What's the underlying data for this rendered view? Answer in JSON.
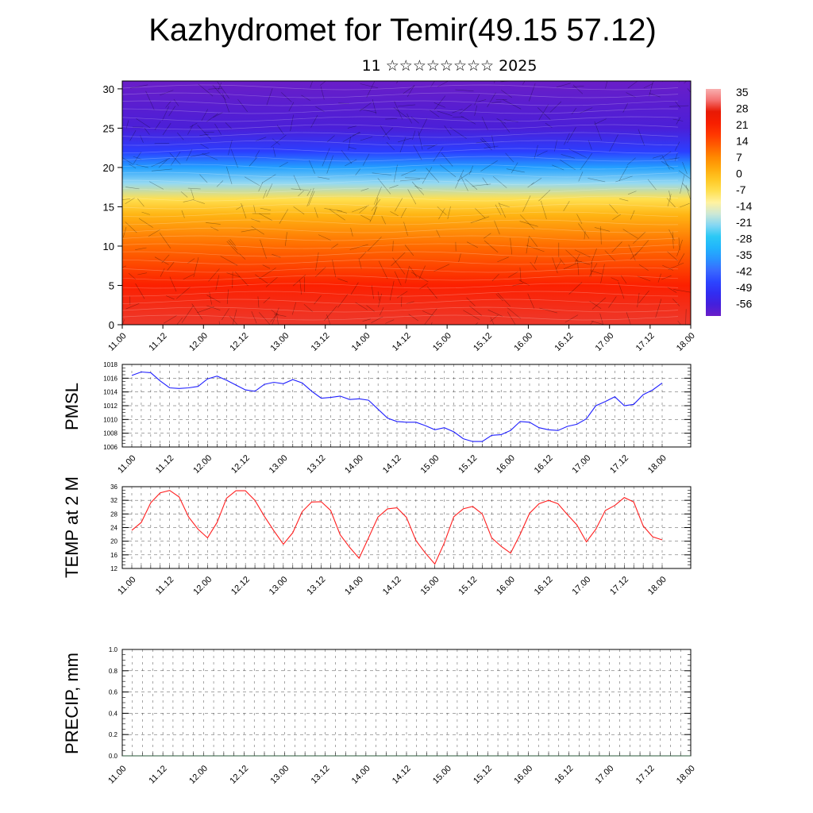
{
  "header": {
    "title": "Kazhydromet for Temir(49.15 57.12)",
    "subtitle": "11 ☆☆☆☆☆☆☆☆ 2025"
  },
  "x_labels": [
    "11.00",
    "11.12",
    "12.00",
    "12.12",
    "13.00",
    "13.12",
    "14.00",
    "14.12",
    "15.00",
    "15.12",
    "16.00",
    "16.12",
    "17.00",
    "17.12",
    "18.00"
  ],
  "chart_data": [
    {
      "type": "heatmap",
      "ylim": [
        0,
        31
      ],
      "y_ticks": [
        "0",
        "5",
        "10",
        "15",
        "20",
        "25",
        "30"
      ],
      "colorbar_labels": [
        "35",
        "28",
        "21",
        "14",
        "7",
        "0",
        "-7",
        "-14",
        "-21",
        "-28",
        "-35",
        "-42",
        "-49",
        "-56"
      ],
      "colorbar_range": [
        -60,
        38
      ],
      "profile": [
        {
          "y": 0,
          "v": 30
        },
        {
          "y": 5,
          "v": 22
        },
        {
          "y": 10,
          "v": 12
        },
        {
          "y": 14,
          "v": 2
        },
        {
          "y": 16,
          "v": -6
        },
        {
          "y": 18,
          "v": -20
        },
        {
          "y": 20,
          "v": -34
        },
        {
          "y": 22,
          "v": -46
        },
        {
          "y": 25,
          "v": -56
        },
        {
          "y": 28,
          "v": -58
        },
        {
          "y": 31,
          "v": -60
        }
      ],
      "grid": true
    },
    {
      "type": "line",
      "ylabel": "PMSL",
      "ylim": [
        1006,
        1018
      ],
      "y_ticks": [
        "1006",
        "1008",
        "1010",
        "1012",
        "1014",
        "1016",
        "1018"
      ],
      "color": "#1f1fff",
      "values": [
        1016.4,
        1016.9,
        1016.8,
        1015.6,
        1014.6,
        1014.5,
        1014.6,
        1014.8,
        1015.9,
        1016.3,
        1015.7,
        1015.0,
        1014.3,
        1014.1,
        1015.1,
        1015.4,
        1015.2,
        1015.8,
        1015.3,
        1014.1,
        1013.1,
        1013.2,
        1013.4,
        1012.9,
        1013.0,
        1012.8,
        1011.5,
        1010.2,
        1009.7,
        1009.6,
        1009.6,
        1009.1,
        1008.5,
        1008.8,
        1008.2,
        1007.2,
        1006.8,
        1006.8,
        1007.7,
        1007.8,
        1008.4,
        1009.7,
        1009.6,
        1008.8,
        1008.5,
        1008.4,
        1009.0,
        1009.3,
        1010.1,
        1012.0,
        1012.6,
        1013.3,
        1012.0,
        1012.2,
        1013.6,
        1014.3,
        1015.3
      ],
      "grid": true
    },
    {
      "type": "line",
      "ylabel": "TEMP at 2 M",
      "ylim": [
        12,
        36
      ],
      "y_ticks": [
        "12",
        "16",
        "20",
        "24",
        "28",
        "32",
        "36"
      ],
      "color": "#ff1f1f",
      "values": [
        23.2,
        25.5,
        31.3,
        34.2,
        34.9,
        33.0,
        27.1,
        23.5,
        21.0,
        25.5,
        32.6,
        34.8,
        34.8,
        32.0,
        27.3,
        23.1,
        19.1,
        22.5,
        28.7,
        31.5,
        31.6,
        29.0,
        21.9,
        18.2,
        15.0,
        21.0,
        27.1,
        29.5,
        29.8,
        27.0,
        20.2,
        16.5,
        13.3,
        19.5,
        27.2,
        29.5,
        30.2,
        28.0,
        21.0,
        18.5,
        16.5,
        22.0,
        28.2,
        31.0,
        32.0,
        31.0,
        27.8,
        24.8,
        19.8,
        23.5,
        29.0,
        30.5,
        32.8,
        31.5,
        24.5,
        21.3,
        20.4
      ],
      "grid": true
    },
    {
      "type": "line",
      "ylabel": "PRECIP, mm",
      "ylim": [
        0,
        1
      ],
      "y_ticks": [
        "0.0",
        "0.2",
        "0.4",
        "0.6",
        "0.8",
        "1.0"
      ],
      "color": "#2a5a3a",
      "values": [
        0,
        0,
        0,
        0,
        0,
        0,
        0,
        0,
        0,
        0,
        0,
        0,
        0,
        0,
        0,
        0,
        0,
        0,
        0,
        0,
        0,
        0,
        0,
        0,
        0,
        0,
        0,
        0,
        0,
        0,
        0,
        0,
        0,
        0,
        0,
        0,
        0,
        0,
        0,
        0,
        0,
        0,
        0,
        0,
        0,
        0,
        0,
        0,
        0,
        0,
        0,
        0,
        0,
        0,
        0,
        0,
        0
      ],
      "grid": true
    }
  ]
}
